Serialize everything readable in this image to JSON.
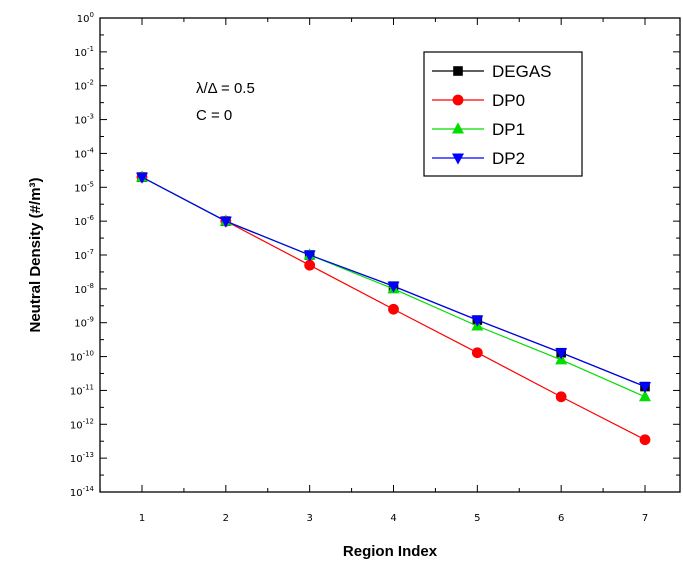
{
  "chart_data": {
    "type": "line",
    "xlabel": "Region Index",
    "ylabel": "Neutral Density (#/m³)",
    "yscale": "log",
    "ylim": [
      1e-14,
      1
    ],
    "xlim": [
      0.5,
      7.5
    ],
    "x": [
      1,
      2,
      3,
      4,
      5,
      6,
      7
    ],
    "x_tick_labels": [
      "1",
      "2",
      "3",
      "4",
      "5",
      "6",
      "7"
    ],
    "y_tick_exponents": [
      "0",
      "-1",
      "-2",
      "-3",
      "-4",
      "-5",
      "-6",
      "-7",
      "-8",
      "-9",
      "-10",
      "-11",
      "-12",
      "-13",
      "-14"
    ],
    "annotations": [
      "λ/Δ = 0.5",
      "C = 0"
    ],
    "legend_position": "top-right",
    "series": [
      {
        "name": "DEGAS",
        "color": "#000000",
        "marker": "square",
        "values": [
          2e-05,
          1e-06,
          1e-07,
          1.2e-08,
          1.2e-09,
          1.3e-10,
          1.3e-11
        ]
      },
      {
        "name": "DP0",
        "color": "#ff0000",
        "marker": "circle",
        "values": [
          2e-05,
          1e-06,
          5e-08,
          2.5e-09,
          1.3e-10,
          6.5e-12,
          3.5e-13
        ]
      },
      {
        "name": "DP1",
        "color": "#00dd00",
        "marker": "triangle-up",
        "values": [
          2e-05,
          1e-06,
          1e-07,
          1e-08,
          8e-10,
          8e-11,
          6.5e-12
        ]
      },
      {
        "name": "DP2",
        "color": "#0000ff",
        "marker": "triangle-down",
        "values": [
          2e-05,
          1e-06,
          1e-07,
          1.2e-08,
          1.2e-09,
          1.3e-10,
          1.3e-11
        ]
      }
    ]
  }
}
